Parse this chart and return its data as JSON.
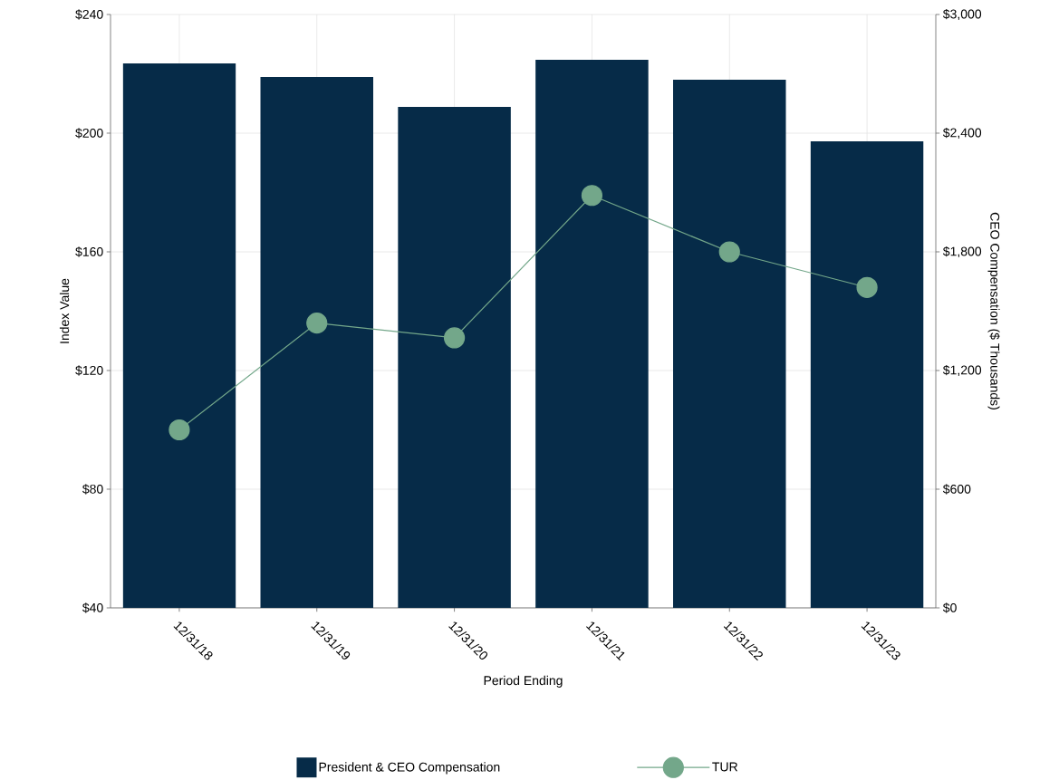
{
  "chart_data": {
    "type": "bar",
    "xlabel": "Period Ending",
    "ylabel": "Index Value",
    "y2label": "CEO Compensation ($ Thousands)",
    "categories": [
      "12/31/18",
      "12/31/19",
      "12/31/20",
      "12/31/21",
      "12/31/22",
      "12/31/23"
    ],
    "series": [
      {
        "name": "President & CEO Compensation",
        "type": "bar",
        "axis": "y2",
        "color": "#062b48",
        "values": [
          2753,
          2684,
          2533,
          2771,
          2670,
          2359
        ]
      },
      {
        "name": "TUR",
        "type": "line",
        "color": "#73a78a",
        "values": [
          100,
          136,
          131,
          179,
          160,
          148
        ]
      }
    ],
    "ylim": [
      40,
      240
    ],
    "yticks": [
      {
        "value": 40,
        "label": "$40"
      },
      {
        "value": 80,
        "label": "$80"
      },
      {
        "value": 120,
        "label": "$120"
      },
      {
        "value": 160,
        "label": "$160"
      },
      {
        "value": 200,
        "label": "$200"
      },
      {
        "value": 240,
        "label": "$240"
      }
    ],
    "y2lim": [
      0,
      3000
    ],
    "y2ticks": [
      {
        "value": 0,
        "label": "$0"
      },
      {
        "value": 600,
        "label": "$600"
      },
      {
        "value": 1200,
        "label": "$1,200"
      },
      {
        "value": 1800,
        "label": "$1,800"
      },
      {
        "value": 2400,
        "label": "$2,400"
      },
      {
        "value": 3000,
        "label": "$3,000"
      }
    ],
    "grid": true,
    "legend": "bottom",
    "marker": "circle",
    "line_style": "solid"
  }
}
